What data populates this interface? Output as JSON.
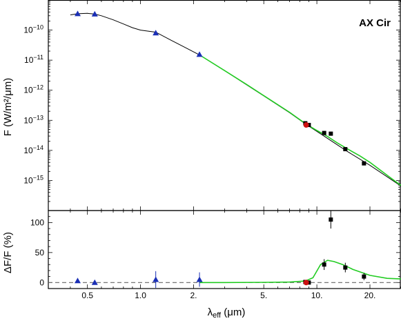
{
  "chart_data": [
    {
      "type": "line",
      "panel": "sed",
      "title": "AX Cir",
      "ylabel": "F (W/m²/μm)",
      "x_scale": "log",
      "y_scale": "log",
      "xlim": [
        0.3,
        30.0
      ],
      "ylim": [
        1e-16,
        1e-09
      ],
      "y_ticks": [
        {
          "value": 1e-10,
          "mantissa": "10",
          "exp": "−10"
        },
        {
          "value": 1e-11,
          "mantissa": "10",
          "exp": "−11"
        },
        {
          "value": 1e-12,
          "mantissa": "10",
          "exp": "−12"
        },
        {
          "value": 1e-13,
          "mantissa": "10",
          "exp": "−13"
        },
        {
          "value": 1e-14,
          "mantissa": "10",
          "exp": "−14"
        },
        {
          "value": 1e-15,
          "mantissa": "10",
          "exp": "−15"
        }
      ],
      "series": [
        {
          "kind": "model_black",
          "color": "#000000",
          "x": [
            0.4,
            0.44,
            0.5,
            0.55,
            0.6,
            0.7,
            0.8,
            0.9,
            1.0,
            1.22,
            1.5,
            1.8,
            2.16,
            3.0,
            4.0,
            5.0,
            7.0,
            8.6,
            10.0,
            15.0,
            20.0,
            30.0
          ],
          "y": [
            3.2e-10,
            3.5e-10,
            3.6e-10,
            3.4e-10,
            3e-10,
            2.2e-10,
            1.6e-10,
            1.2e-10,
            1e-10,
            8.5e-11,
            4.5e-11,
            2.6e-11,
            1.5e-11,
            4.5e-12,
            1.5e-12,
            6.5e-13,
            1.8e-13,
            7.6e-14,
            4.3e-14,
            9e-15,
            3.2e-15,
            6.5e-16
          ]
        },
        {
          "kind": "model_green",
          "color": "#22cc22",
          "x": [
            2.16,
            3.0,
            4.0,
            5.0,
            7.0,
            8.6,
            10.0,
            11.5,
            13.0,
            15.0,
            17.5,
            20.0,
            25.0,
            30.0
          ],
          "y": [
            1.5e-11,
            4.5e-12,
            1.55e-12,
            6.6e-13,
            1.85e-13,
            7.8e-14,
            4.6e-14,
            2.9e-14,
            1.8e-14,
            1.1e-14,
            6.6e-15,
            4e-15,
            1.5e-15,
            6.8e-16
          ]
        },
        {
          "kind": "photometry_optical",
          "marker": "triangle",
          "color": "#1a2fb5",
          "x": [
            0.44,
            0.55,
            1.22,
            2.16
          ],
          "y": [
            3.5e-10,
            3.4e-10,
            8e-11,
            1.55e-11
          ]
        },
        {
          "kind": "photometry_ir",
          "marker": "square",
          "color": "#000000",
          "x": [
            8.6,
            9.0,
            11.0,
            12.0,
            14.5,
            18.5
          ],
          "y": [
            8e-14,
            7e-14,
            3.8e-14,
            3.6e-14,
            1.1e-14,
            3.7e-15
          ]
        },
        {
          "kind": "photometry_red",
          "marker": "circle",
          "color": "#cc1111",
          "x": [
            8.7
          ],
          "y": [
            7e-14
          ]
        }
      ]
    },
    {
      "type": "line",
      "panel": "residual",
      "ylabel": "ΔF/F (%)",
      "xlabel_main": "λ",
      "xlabel_sub": "eff",
      "xlabel_unit": " (μm)",
      "x_scale": "log",
      "xlim": [
        0.3,
        30.0
      ],
      "ylim": [
        -10,
        120
      ],
      "y_ticks": [
        0,
        50,
        100
      ],
      "x_ticks": [
        0.5,
        1.0,
        2.0,
        5.0,
        10.0,
        20.0
      ],
      "x_tick_labels": [
        "0.5",
        "1.0",
        "2.",
        "5.",
        "10.",
        "20."
      ],
      "zero_line": "dashed",
      "series": [
        {
          "kind": "excess_model",
          "color": "#22cc22",
          "x": [
            2.16,
            3.0,
            5.0,
            7.0,
            8.6,
            9.5,
            10.5,
            11.5,
            12.5,
            14.0,
            16.0,
            20.0,
            25.0,
            30.0
          ],
          "y": [
            0,
            0,
            0.3,
            0.8,
            2.5,
            8,
            30,
            37,
            35,
            30,
            22,
            12,
            7,
            6
          ]
        },
        {
          "kind": "optical_residuals",
          "marker": "triangle",
          "color": "#1a2fb5",
          "x": [
            0.44,
            0.55,
            1.22,
            2.16
          ],
          "y": [
            3,
            0,
            5,
            5
          ],
          "err": [
            2,
            1,
            14,
            12
          ]
        },
        {
          "kind": "ir_residuals",
          "marker": "square",
          "color": "#000000",
          "x": [
            8.6,
            9.0,
            11.0,
            12.0,
            14.5,
            18.5
          ],
          "y": [
            1,
            0,
            30,
            105,
            25,
            10
          ],
          "err": [
            2,
            2,
            9,
            15,
            8,
            6
          ]
        },
        {
          "kind": "red_residual",
          "marker": "circle",
          "color": "#cc1111",
          "x": [
            8.7
          ],
          "y": [
            0
          ],
          "err": [
            1
          ]
        }
      ]
    }
  ]
}
